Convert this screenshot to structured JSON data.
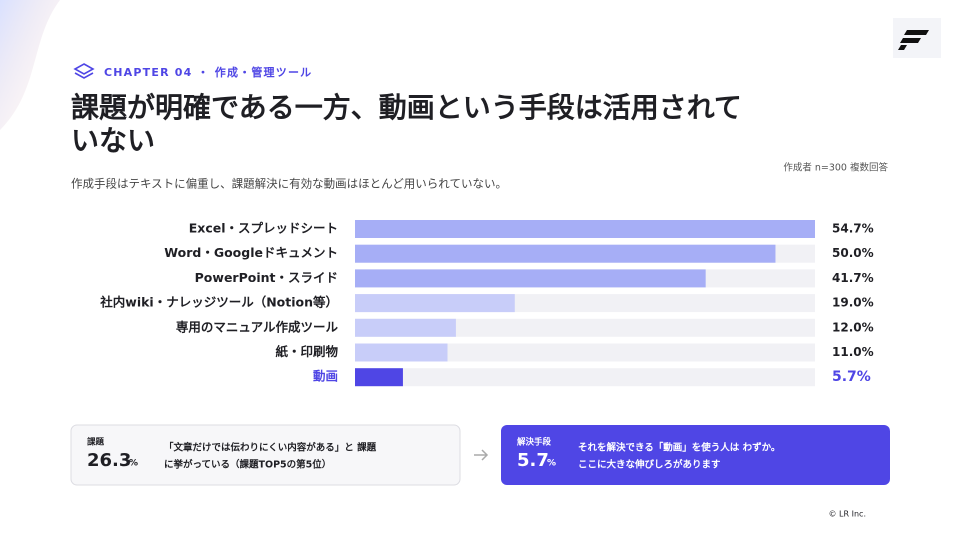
{
  "header": {
    "chapter": "CHAPTER 04 ・ 作成・管理ツール",
    "title_lines": [
      "課題が明確である一方、動画という手段は活用されて",
      "いない"
    ],
    "note": "作成者 n=300 複数回答",
    "subtitle": "作成手段はテキストに偏重し、課題解決に有効な動画はほとんど用いられていない。"
  },
  "chart_data": {
    "type": "hbar",
    "categories": [
      "Excel・スプレッドシート",
      "Word・Googleドキュメント",
      "PowerPoint・スライド",
      "社内wiki・ナレッジツール（Notion等）",
      "専用のマニュアル作成ツール",
      "紙・印刷物",
      "動画"
    ],
    "values": [
      54.7,
      50.0,
      41.7,
      19.0,
      12.0,
      11.0,
      5.7
    ],
    "value_labels": [
      "54.7%",
      "50.0%",
      "41.7%",
      "19.0%",
      "12.0%",
      "11.0%",
      "5.7%"
    ],
    "colors": [
      "#a6aef6",
      "#a6aef6",
      "#a6aef6",
      "#c8cdf9",
      "#c8cdf9",
      "#c8cdf9",
      "#4f46e5"
    ],
    "highlight_color": "#4f46e5",
    "track_color": "#f1f1f5"
  },
  "callouts": [
    {
      "label": "課題",
      "value": "26.3",
      "unit": "%",
      "text_lines": [
        "「文章だけでは伝わりにくい内容がある」と 課題",
        "に挙がっている（課題TOP5の第5位）"
      ]
    },
    {
      "label": "解決手段",
      "value": "5.7",
      "unit": "%",
      "text_lines": [
        "それを解決できる「動画」を使う人は わずか。",
        "ここに大きな伸びしろがあります"
      ]
    }
  ],
  "footer": {
    "copyright": "© LR Inc."
  }
}
